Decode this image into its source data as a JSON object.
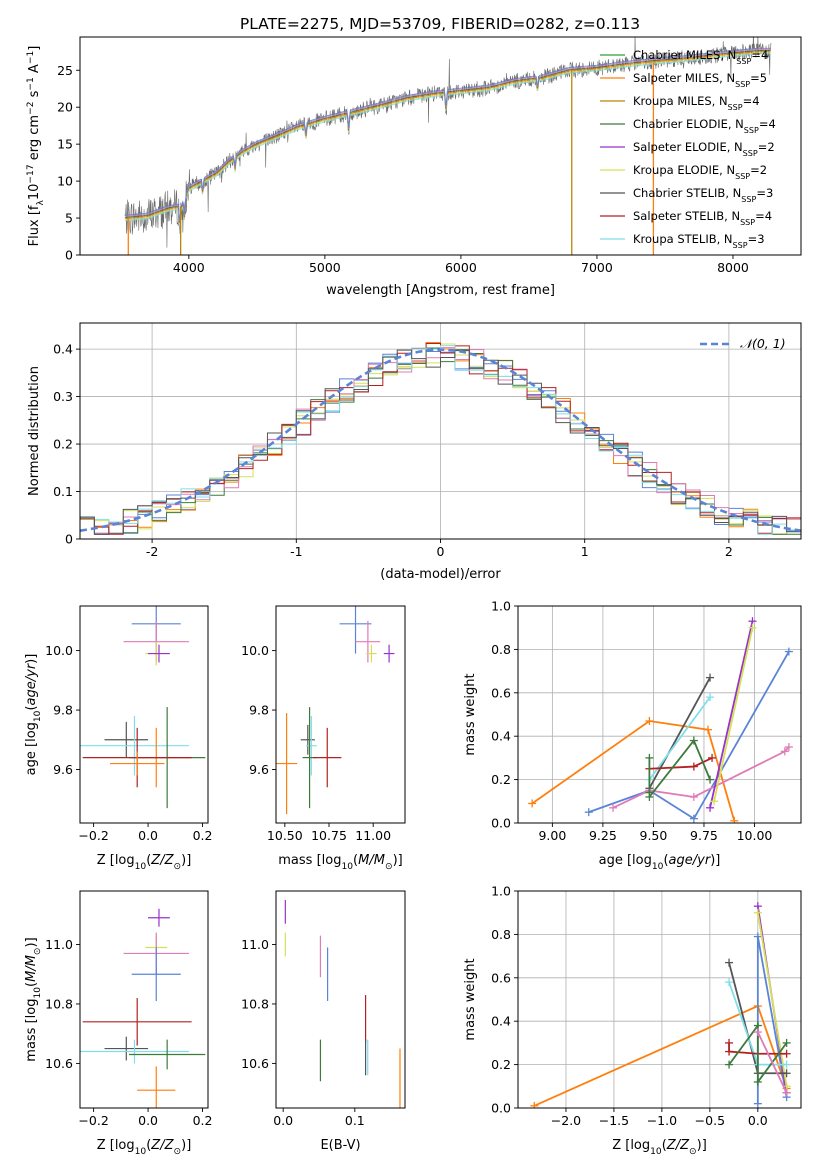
{
  "title": "PLATE=2275, MJD=53709, FIBERID=0282, z=0.113",
  "colors": {
    "chabrier_miles": "#2ca02c",
    "salpeter_miles": "#ff7f0e",
    "kroupa_miles": "#b8860b",
    "chabrier_elodie": "#3d7a3d",
    "salpeter_elodie": "#9932cc",
    "kroupa_elodie": "#d4e157",
    "chabrier_stelib": "#555555",
    "salpeter_stelib": "#b22222",
    "kroupa_stelib": "#80deea",
    "blue": "#5b84d6",
    "pink": "#e07bb8",
    "orange": "#e57c1f"
  },
  "chart_data": [
    {
      "id": "spectrum",
      "type": "line",
      "xlabel": "wavelength [Angstrom, rest frame]",
      "ylabel_main": "Flux [f",
      "ylabel_sub": "λ",
      "ylabel_rest": "10",
      "ylabel_sup": "−17",
      "ylabel_tail": " erg cm",
      "ylabel_sup2": "−2",
      "ylabel_tail2": " s",
      "ylabel_sup3": "−1",
      "ylabel_tail3": " A",
      "ylabel_sup4": "−1",
      "ylabel_end": "]",
      "xlim": [
        3200,
        8500
      ],
      "ylim": [
        0,
        29.5
      ],
      "xticks": [
        4000,
        5000,
        6000,
        7000,
        8000
      ],
      "yticks": [
        0,
        5,
        10,
        15,
        20,
        25
      ],
      "continuum": [
        [
          3530,
          5
        ],
        [
          3700,
          5.3
        ],
        [
          3850,
          6.3
        ],
        [
          3950,
          6.6
        ],
        [
          4000,
          9
        ],
        [
          4100,
          10
        ],
        [
          4200,
          11
        ],
        [
          4300,
          12.7
        ],
        [
          4400,
          14
        ],
        [
          4500,
          15
        ],
        [
          4700,
          16.5
        ],
        [
          4800,
          17.3
        ],
        [
          5000,
          18.4
        ],
        [
          5200,
          19.3
        ],
        [
          5400,
          20.2
        ],
        [
          5600,
          21.2
        ],
        [
          5800,
          21.8
        ],
        [
          6000,
          22.2
        ],
        [
          6200,
          22.6
        ],
        [
          6400,
          23.5
        ],
        [
          6600,
          24
        ],
        [
          6800,
          25
        ],
        [
          7000,
          25.3
        ],
        [
          7200,
          25.8
        ],
        [
          7400,
          26.2
        ],
        [
          7600,
          26.5
        ],
        [
          7800,
          26.9
        ],
        [
          8000,
          27.3
        ],
        [
          8200,
          27.6
        ]
      ],
      "legend": [
        {
          "label": "Chabrier MILES, N",
          "sub": "SSP",
          "tail": "=4",
          "color": "chabrier_miles"
        },
        {
          "label": "Salpeter MILES, N",
          "sub": "SSP",
          "tail": "=5",
          "color": "salpeter_miles"
        },
        {
          "label": "Kroupa MILES, N",
          "sub": "SSP",
          "tail": "=4",
          "color": "kroupa_miles"
        },
        {
          "label": "Chabrier ELODIE, N",
          "sub": "SSP",
          "tail": "=4",
          "color": "chabrier_elodie"
        },
        {
          "label": "Salpeter ELODIE, N",
          "sub": "SSP",
          "tail": "=2",
          "color": "salpeter_elodie"
        },
        {
          "label": "Kroupa ELODIE, N",
          "sub": "SSP",
          "tail": "=2",
          "color": "kroupa_elodie"
        },
        {
          "label": "Chabrier STELIB, N",
          "sub": "SSP",
          "tail": "=3",
          "color": "chabrier_stelib"
        },
        {
          "label": "Salpeter STELIB, N",
          "sub": "SSP",
          "tail": "=4",
          "color": "salpeter_stelib"
        },
        {
          "label": "Kroupa STELIB, N",
          "sub": "SSP",
          "tail": "=3",
          "color": "kroupa_stelib"
        }
      ]
    },
    {
      "id": "residuals",
      "type": "line",
      "xlabel": "(data-model)/error",
      "ylabel": "Normed distribution",
      "xlim": [
        -2.5,
        2.5
      ],
      "ylim": [
        0,
        0.455
      ],
      "xticks": [
        -2,
        -1,
        0,
        1,
        2
      ],
      "yticks": [
        0.0,
        0.1,
        0.2,
        0.3,
        0.4
      ],
      "grid": true,
      "legend_label": "𝒩(0, 1)",
      "legend_position": "top-right",
      "bin_width": 0.1,
      "series_colors": [
        "blue",
        "salpeter_miles",
        "kroupa_elodie",
        "chabrier_elodie",
        "pink",
        "salpeter_stelib",
        "kroupa_stelib",
        "chabrier_stelib"
      ]
    },
    {
      "id": "z_age",
      "type": "scatter",
      "xlabel": "Z [log",
      "xlabel_sub": "10",
      "xlabel_tail": "(Z/Z",
      "xlabel_sub2": "⊙",
      "xlabel_end": ")]",
      "ylabel": "age  [log",
      "ylabel_sub": "10",
      "ylabel_tail": "(age/yr)]",
      "xlim": [
        -0.25,
        0.22
      ],
      "ylim": [
        9.42,
        10.15
      ],
      "xticks": [
        -0.2,
        0.0,
        0.2
      ],
      "xticklabels": [
        "−0.2",
        "0.0",
        "0.2"
      ],
      "yticks": [
        9.6,
        9.8,
        10.0
      ],
      "yticklabels": [
        "9.6",
        "9.8",
        "10.0"
      ],
      "points": [
        {
          "x": 0.03,
          "y": 10.09,
          "dx": 0.09,
          "dy": 0.1,
          "color": "blue"
        },
        {
          "x": 0.03,
          "y": 10.03,
          "dx": 0.12,
          "dy": 0.07,
          "color": "pink"
        },
        {
          "x": 0.03,
          "y": 9.99,
          "dx": 0.04,
          "dy": 0.04,
          "color": "kroupa_elodie"
        },
        {
          "x": 0.04,
          "y": 9.99,
          "dx": 0.04,
          "dy": 0.03,
          "color": "salpeter_elodie"
        },
        {
          "x": -0.08,
          "y": 9.7,
          "dx": 0.08,
          "dy": 0.06,
          "color": "chabrier_stelib"
        },
        {
          "x": -0.05,
          "y": 9.68,
          "dx": 0.2,
          "dy": 0.1,
          "color": "kroupa_stelib"
        },
        {
          "x": 0.07,
          "y": 9.64,
          "dx": 0.14,
          "dy": 0.17,
          "color": "chabrier_elodie"
        },
        {
          "x": 0.03,
          "y": 9.64,
          "dx": 0.07,
          "dy": 0.1,
          "color": "salpeter_miles"
        },
        {
          "x": -0.04,
          "y": 9.64,
          "dx": 0.2,
          "dy": 0.1,
          "color": "salpeter_stelib"
        },
        {
          "x": -0.04,
          "y": 9.62,
          "dx": 0.1,
          "dy": 0.04,
          "color": "salpeter_miles"
        }
      ]
    },
    {
      "id": "mass_age",
      "type": "scatter",
      "xlabel": "mass [log",
      "xlabel_sub": "10",
      "xlabel_tail": "(M/M",
      "xlabel_sub2": "⊙",
      "xlabel_end": ")]",
      "xlim": [
        10.45,
        11.18
      ],
      "ylim": [
        9.42,
        10.15
      ],
      "xticks": [
        10.5,
        10.75,
        11.0
      ],
      "xticklabels": [
        "10.50",
        "10.75",
        "11.00"
      ],
      "yticks": [
        9.6,
        9.8,
        10.0
      ],
      "yticklabels": [
        "9.6",
        "9.8",
        "10.0"
      ],
      "points": [
        {
          "x": 10.9,
          "y": 10.09,
          "dx": 0.09,
          "dy": 0.1,
          "color": "blue"
        },
        {
          "x": 10.97,
          "y": 10.03,
          "dx": 0.07,
          "dy": 0.07,
          "color": "pink"
        },
        {
          "x": 10.99,
          "y": 9.99,
          "dx": 0.03,
          "dy": 0.03,
          "color": "kroupa_elodie"
        },
        {
          "x": 11.09,
          "y": 9.99,
          "dx": 0.03,
          "dy": 0.03,
          "color": "salpeter_elodie"
        },
        {
          "x": 10.63,
          "y": 9.7,
          "dx": 0.04,
          "dy": 0.05,
          "color": "chabrier_stelib"
        },
        {
          "x": 10.65,
          "y": 9.68,
          "dx": 0.03,
          "dy": 0.1,
          "color": "kroupa_stelib"
        },
        {
          "x": 10.64,
          "y": 9.64,
          "dx": 0.04,
          "dy": 0.17,
          "color": "chabrier_elodie"
        },
        {
          "x": 10.74,
          "y": 9.64,
          "dx": 0.08,
          "dy": 0.1,
          "color": "salpeter_stelib"
        },
        {
          "x": 10.51,
          "y": 9.62,
          "dx": 0.06,
          "dy": 0.17,
          "color": "salpeter_miles"
        }
      ]
    },
    {
      "id": "age_weight",
      "type": "line",
      "xlabel": "age  [log",
      "xlabel_sub": "10",
      "xlabel_tail": "(age/yr)]",
      "ylabel": "mass weight",
      "xlim": [
        8.83,
        10.23
      ],
      "ylim": [
        0,
        1.0
      ],
      "xticks": [
        9.0,
        9.25,
        9.5,
        9.75,
        10.0
      ],
      "xticklabels": [
        "9.00",
        "9.25",
        "9.50",
        "9.75",
        "10.00"
      ],
      "yticks": [
        0.0,
        0.2,
        0.4,
        0.6,
        0.8,
        1.0
      ],
      "yticklabels": [
        "0.0",
        "0.2",
        "0.4",
        "0.6",
        "0.8",
        "1.0"
      ],
      "grid": true,
      "series": [
        {
          "color": "salpeter_miles",
          "points": [
            [
              8.9,
              0.09
            ],
            [
              9.48,
              0.47
            ],
            [
              9.77,
              0.43
            ],
            [
              9.9,
              0.01
            ]
          ]
        },
        {
          "color": "blue",
          "points": [
            [
              9.18,
              0.05
            ],
            [
              9.48,
              0.15
            ],
            [
              9.7,
              0.02
            ],
            [
              10.17,
              0.79
            ]
          ]
        },
        {
          "color": "pink",
          "points": [
            [
              9.3,
              0.07
            ],
            [
              9.48,
              0.15
            ],
            [
              9.7,
              0.12
            ],
            [
              10.15,
              0.33
            ],
            [
              10.17,
              0.35
            ]
          ]
        },
        {
          "color": "salpeter_elodie",
          "points": [
            [
              9.78,
              0.07
            ],
            [
              9.99,
              0.93
            ]
          ]
        },
        {
          "color": "kroupa_elodie",
          "points": [
            [
              9.8,
              0.1
            ],
            [
              9.99,
              0.9
            ]
          ]
        },
        {
          "color": "chabrier_stelib",
          "points": [
            [
              9.48,
              0.16
            ],
            [
              9.78,
              0.67
            ]
          ]
        },
        {
          "color": "kroupa_stelib",
          "points": [
            [
              9.48,
              0.2
            ],
            [
              9.78,
              0.58
            ]
          ]
        },
        {
          "color": "salpeter_stelib",
          "points": [
            [
              9.48,
              0.25
            ],
            [
              9.7,
              0.26
            ],
            [
              9.79,
              0.3
            ]
          ]
        },
        {
          "color": "chabrier_elodie",
          "points": [
            [
              9.48,
              0.12
            ],
            [
              9.7,
              0.38
            ],
            [
              9.78,
              0.2
            ]
          ]
        },
        {
          "color": "chabrier_elodie",
          "points": [
            [
              9.48,
              0.3
            ],
            [
              9.48,
              0.14
            ]
          ]
        }
      ]
    },
    {
      "id": "z_mass",
      "type": "scatter",
      "xlabel": "Z [log",
      "xlabel_sub": "10",
      "xlabel_tail": "(Z/Z",
      "xlabel_sub2": "⊙",
      "xlabel_end": ")]",
      "ylabel": "mass [log",
      "ylabel_sub": "10",
      "ylabel_tail": "(M/M",
      "ylabel_sub2": "⊙",
      "ylabel_end": ")]",
      "xlim": [
        -0.25,
        0.22
      ],
      "ylim": [
        10.45,
        11.18
      ],
      "xticks": [
        -0.2,
        0.0,
        0.2
      ],
      "xticklabels": [
        "−0.2",
        "0.0",
        "0.2"
      ],
      "yticks": [
        10.6,
        10.8,
        11.0
      ],
      "yticklabels": [
        "10.6",
        "10.8",
        "11.0"
      ],
      "points": [
        {
          "x": 0.04,
          "y": 11.09,
          "dx": 0.04,
          "dy": 0.03,
          "color": "salpeter_elodie"
        },
        {
          "x": 0.03,
          "y": 10.99,
          "dx": 0.04,
          "dy": 0.04,
          "color": "kroupa_elodie"
        },
        {
          "x": 0.03,
          "y": 10.97,
          "dx": 0.12,
          "dy": 0.07,
          "color": "pink"
        },
        {
          "x": 0.03,
          "y": 10.9,
          "dx": 0.09,
          "dy": 0.09,
          "color": "blue"
        },
        {
          "x": -0.04,
          "y": 10.74,
          "dx": 0.2,
          "dy": 0.08,
          "color": "salpeter_stelib"
        },
        {
          "x": -0.08,
          "y": 10.65,
          "dx": 0.08,
          "dy": 0.04,
          "color": "chabrier_stelib"
        },
        {
          "x": -0.05,
          "y": 10.64,
          "dx": 0.2,
          "dy": 0.04,
          "color": "kroupa_stelib"
        },
        {
          "x": 0.07,
          "y": 10.63,
          "dx": 0.14,
          "dy": 0.05,
          "color": "chabrier_elodie"
        },
        {
          "x": 0.03,
          "y": 10.51,
          "dx": 0.07,
          "dy": 0.08,
          "color": "salpeter_miles"
        }
      ]
    },
    {
      "id": "ebv_mass",
      "type": "scatter",
      "xlabel": "E(B-V)",
      "xlim": [
        -0.01,
        0.17
      ],
      "ylim": [
        10.45,
        11.18
      ],
      "xticks": [
        0.0,
        0.1
      ],
      "xticklabels": [
        "0.0",
        "0.1"
      ],
      "yticks": [
        10.6,
        10.8,
        11.0
      ],
      "yticklabels": [
        "10.6",
        "10.8",
        "11.0"
      ],
      "points": [
        {
          "x": 0.003,
          "y": 11.11,
          "dy": 0.04,
          "color": "salpeter_elodie"
        },
        {
          "x": 0.003,
          "y": 11.0,
          "dy": 0.04,
          "color": "kroupa_elodie"
        },
        {
          "x": 0.052,
          "y": 10.96,
          "dy": 0.07,
          "color": "pink"
        },
        {
          "x": 0.062,
          "y": 10.9,
          "dy": 0.09,
          "color": "blue"
        },
        {
          "x": 0.115,
          "y": 10.75,
          "dy": 0.08,
          "color": "salpeter_stelib"
        },
        {
          "x": 0.052,
          "y": 10.61,
          "dy": 0.07,
          "color": "chabrier_elodie"
        },
        {
          "x": 0.115,
          "y": 10.62,
          "dy": 0.06,
          "color": "chabrier_stelib"
        },
        {
          "x": 0.118,
          "y": 10.62,
          "dy": 0.06,
          "color": "kroupa_stelib"
        },
        {
          "x": 0.163,
          "y": 10.55,
          "dy": 0.1,
          "color": "salpeter_miles"
        }
      ]
    },
    {
      "id": "z_weight",
      "type": "line",
      "xlabel": "Z [log",
      "xlabel_sub": "10",
      "xlabel_tail": "(Z/Z",
      "xlabel_sub2": "⊙",
      "xlabel_end": ")]",
      "ylabel": "mass weight",
      "xlim": [
        -2.5,
        0.45
      ],
      "ylim": [
        0,
        1.0
      ],
      "xticks": [
        -2.0,
        -1.5,
        -1.0,
        -0.5,
        0.0
      ],
      "xticklabels": [
        "−2.0",
        "−1.5",
        "−1.0",
        "−0.5",
        "0.0"
      ],
      "yticks": [
        0.0,
        0.2,
        0.4,
        0.6,
        0.8,
        1.0
      ],
      "yticklabels": [
        "0.0",
        "0.2",
        "0.4",
        "0.6",
        "0.8",
        "1.0"
      ],
      "grid": true,
      "series": [
        {
          "color": "salpeter_miles",
          "points": [
            [
              -2.33,
              0.01
            ],
            [
              0.0,
              0.47
            ],
            [
              0.3,
              0.09
            ]
          ]
        },
        {
          "color": "blue",
          "points": [
            [
              0.0,
              0.02
            ],
            [
              0.0,
              0.79
            ],
            [
              0.3,
              0.05
            ]
          ]
        },
        {
          "color": "salpeter_elodie",
          "points": [
            [
              0.0,
              0.93
            ],
            [
              0.3,
              0.07
            ]
          ]
        },
        {
          "color": "kroupa_elodie",
          "points": [
            [
              0.0,
              0.9
            ],
            [
              0.3,
              0.1
            ]
          ]
        },
        {
          "color": "chabrier_stelib",
          "points": [
            [
              -0.3,
              0.67
            ],
            [
              0.0,
              0.16
            ],
            [
              0.3,
              0.16
            ]
          ]
        },
        {
          "color": "kroupa_stelib",
          "points": [
            [
              -0.3,
              0.58
            ],
            [
              0.0,
              0.2
            ],
            [
              0.3,
              0.2
            ]
          ]
        },
        {
          "color": "salpeter_stelib",
          "points": [
            [
              -0.3,
              0.3
            ],
            [
              -0.3,
              0.26
            ],
            [
              0.0,
              0.25
            ],
            [
              0.3,
              0.25
            ]
          ]
        },
        {
          "color": "chabrier_elodie",
          "points": [
            [
              -0.3,
              0.2
            ],
            [
              0.0,
              0.38
            ],
            [
              0.0,
              0.12
            ],
            [
              0.3,
              0.3
            ]
          ]
        },
        {
          "color": "pink",
          "points": [
            [
              0.0,
              0.35
            ],
            [
              0.3,
              0.07
            ]
          ]
        }
      ]
    }
  ]
}
